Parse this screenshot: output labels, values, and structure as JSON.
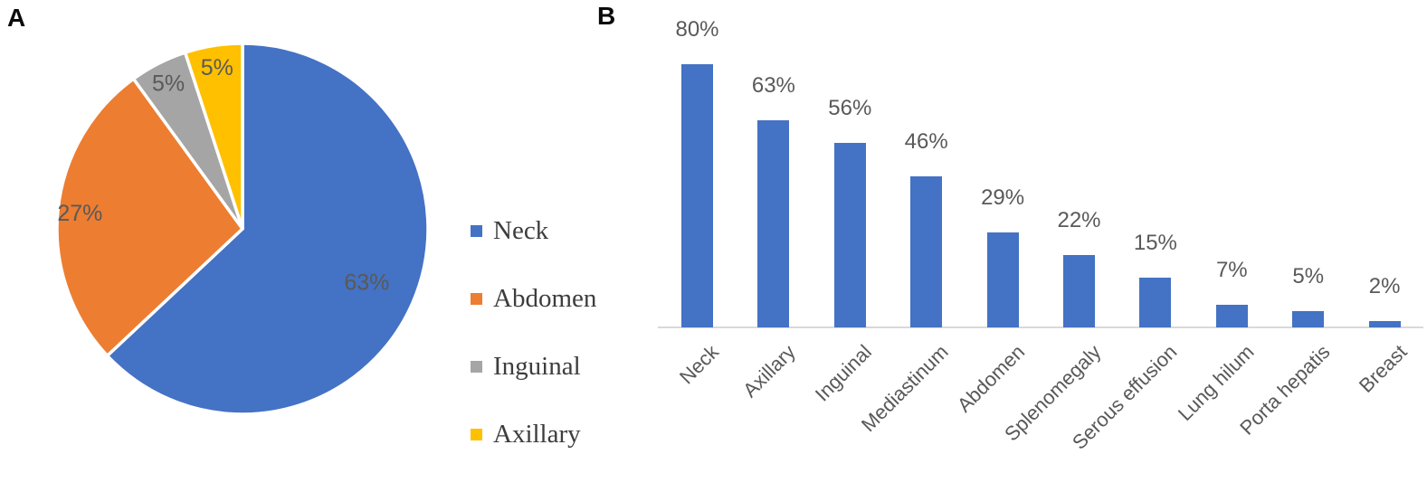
{
  "figure": {
    "panel_a_label": "A",
    "panel_b_label": "B"
  },
  "colors": {
    "series_blue": "#4472C4",
    "series_orange": "#ED7D31",
    "series_gray": "#A5A5A5",
    "series_yellow": "#FFC000",
    "data_label_gray": "#595959",
    "legend_text": "#3d3d3d",
    "axis_line": "#d9d9d9"
  },
  "chart_data": [
    {
      "type": "pie",
      "panel": "A",
      "title": "",
      "labels": [
        "Neck",
        "Abdomen",
        "Inguinal",
        "Axillary"
      ],
      "values": [
        63,
        27,
        5,
        5
      ],
      "data_labels": [
        "63%",
        "27%",
        "5%",
        "5%"
      ],
      "colors": [
        "#4472C4",
        "#ED7D31",
        "#A5A5A5",
        "#FFC000"
      ],
      "start_angle_deg": 0,
      "direction": "clockwise",
      "legend_position": "right",
      "label_color": "#595959"
    },
    {
      "type": "bar",
      "panel": "B",
      "title": "",
      "xlabel": "",
      "ylabel": "",
      "categories": [
        "Neck",
        "Axillary",
        "Inguinal",
        "Mediastinum",
        "Abdomen",
        "Splenomegaly",
        "Serous effusion",
        "Lung hilum",
        "Porta hepatis",
        "Breast"
      ],
      "values": [
        80,
        63,
        56,
        46,
        29,
        22,
        15,
        7,
        5,
        2
      ],
      "value_labels": [
        "80%",
        "63%",
        "56%",
        "46%",
        "29%",
        "22%",
        "15%",
        "7%",
        "5%",
        "2%"
      ],
      "bar_color": "#4472C4",
      "label_color": "#595959",
      "axis_line_color": "#d9d9d9",
      "ylim": [
        0,
        80
      ],
      "gridlines": false,
      "legend_position": "none",
      "category_label_rotation_deg": 45
    }
  ]
}
